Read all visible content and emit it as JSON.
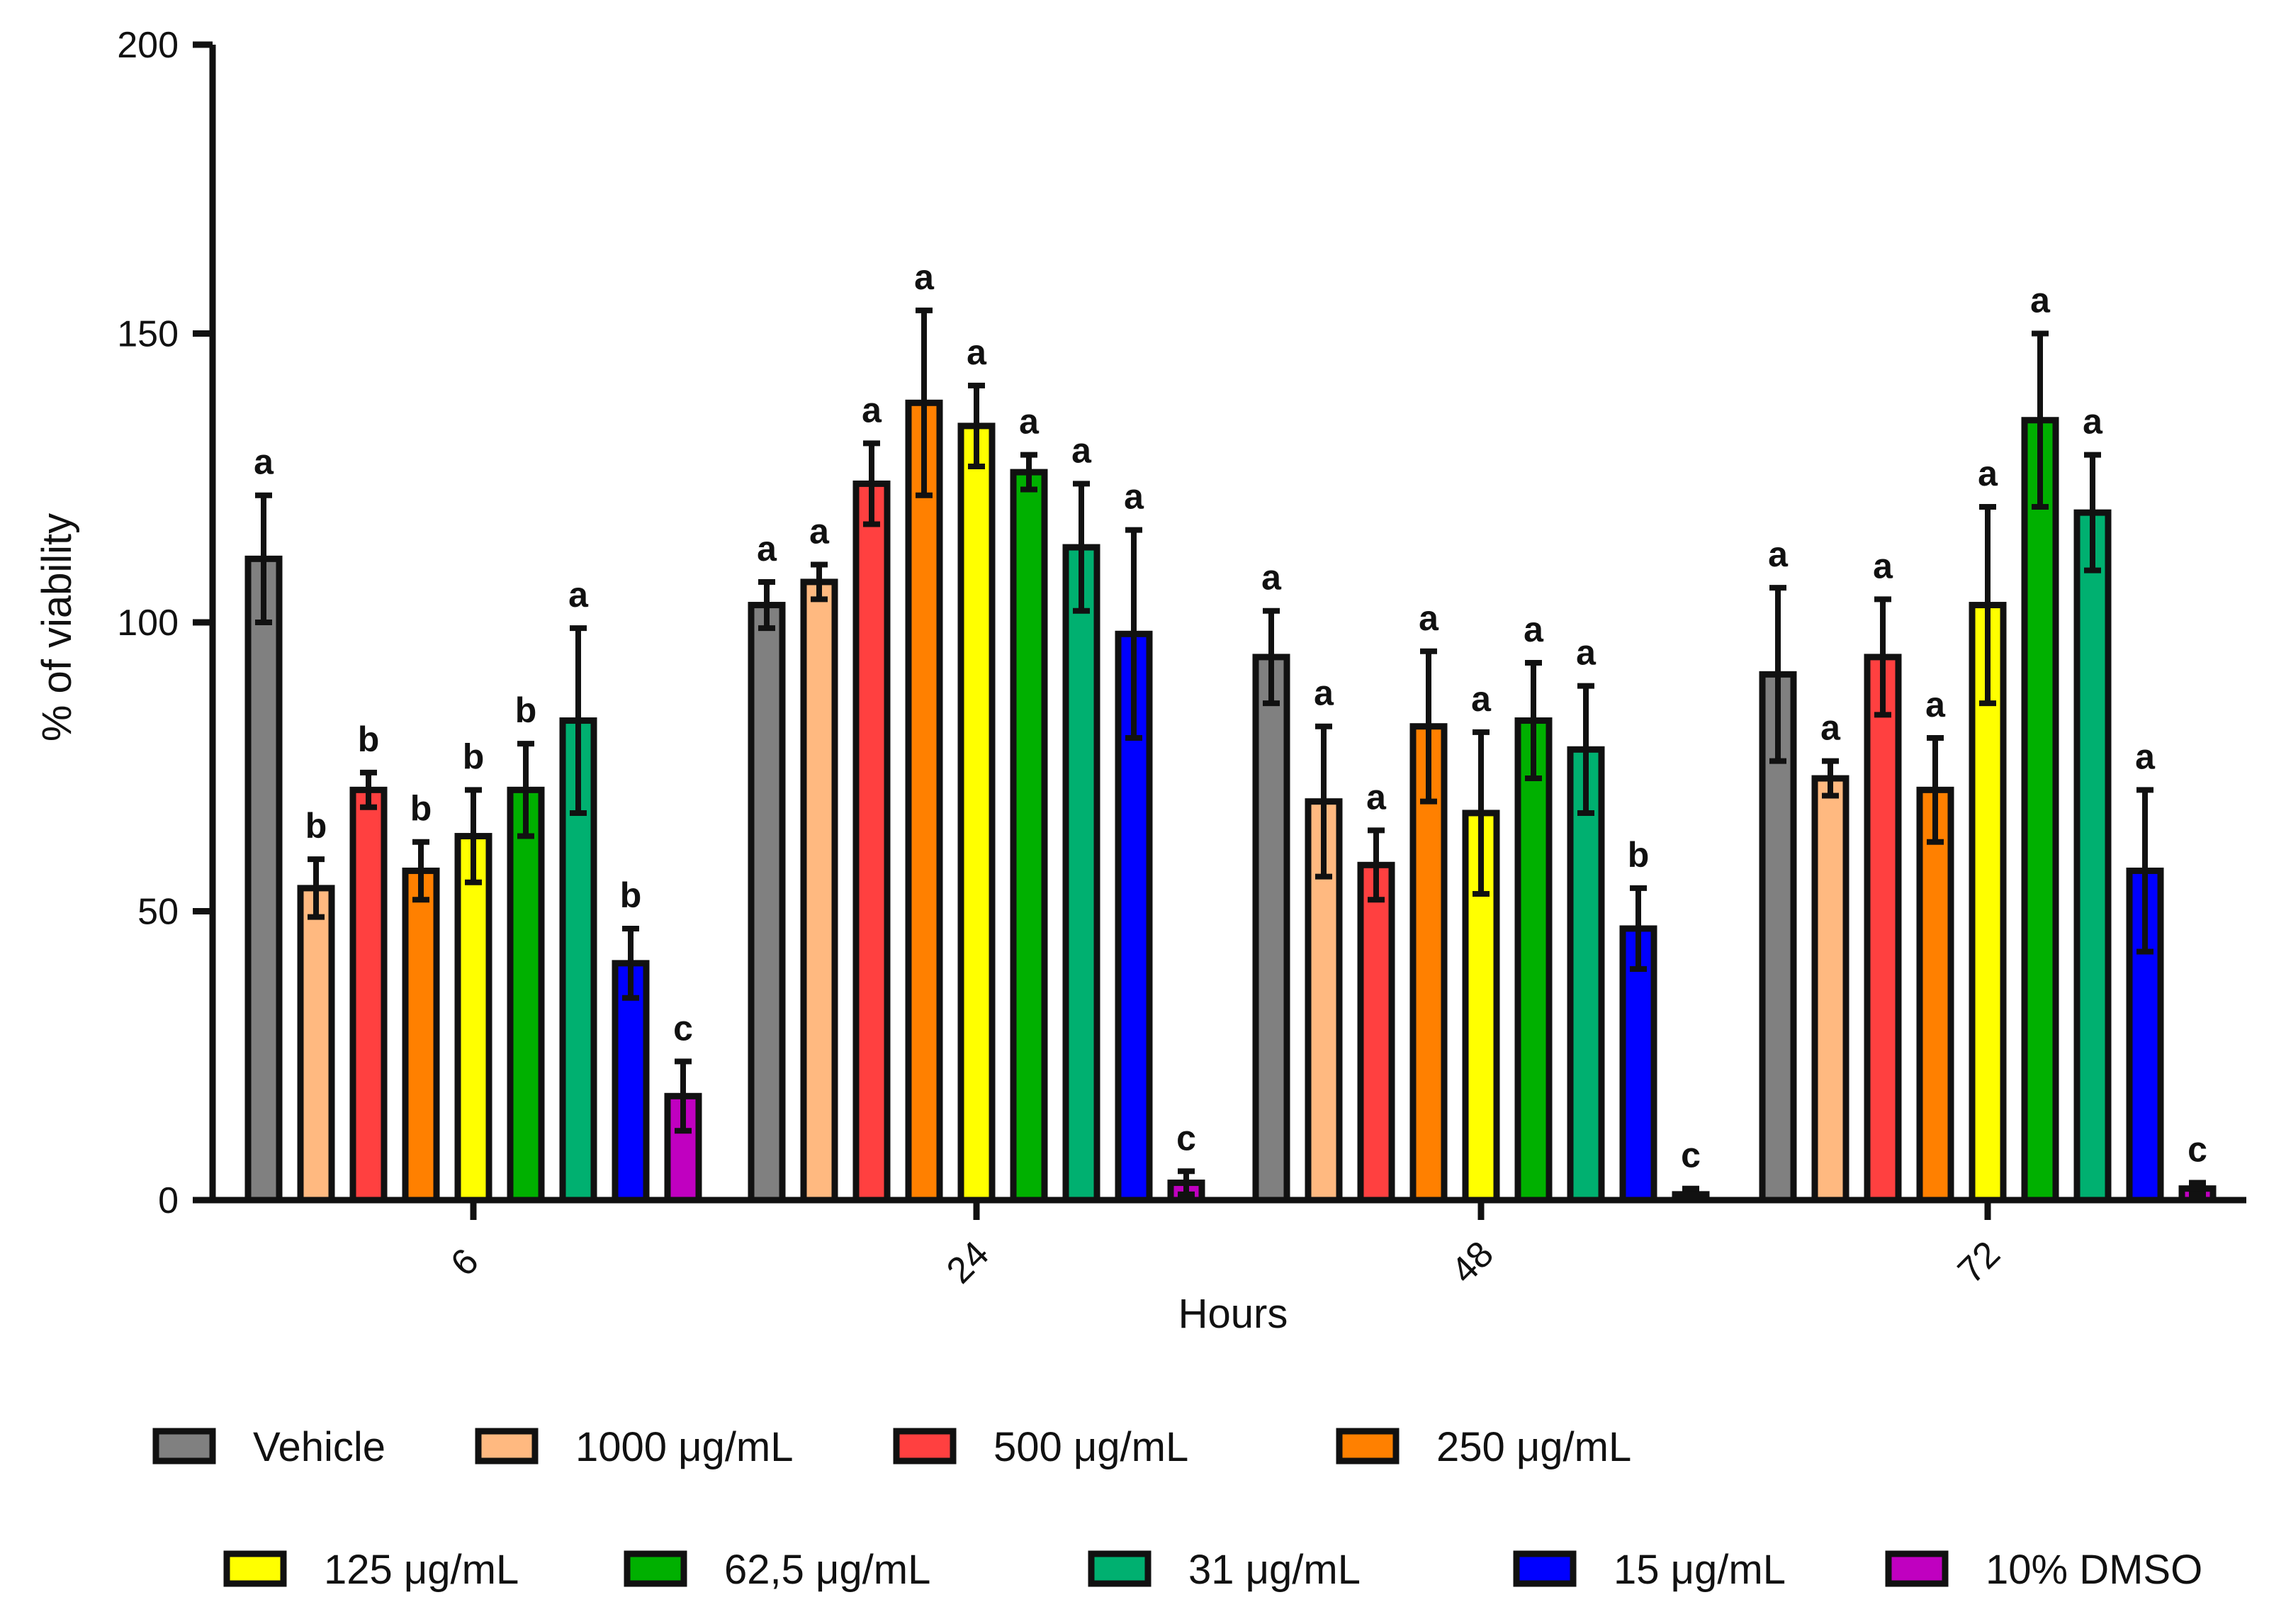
{
  "chart_data": {
    "type": "bar",
    "title": "",
    "xlabel": "Hours",
    "ylabel": "% of viability",
    "ylim": [
      0,
      200
    ],
    "yticks": [
      0,
      50,
      100,
      150,
      200
    ],
    "categories": [
      "6",
      "24",
      "48",
      "72"
    ],
    "series": [
      {
        "name": "Vehicle",
        "color": "#808080",
        "values": [
          111,
          103,
          94,
          91
        ],
        "errors": [
          11,
          4,
          8,
          15
        ],
        "letters": [
          "a",
          "a",
          "a",
          "a"
        ]
      },
      {
        "name": "1000 μg/mL",
        "color": "#FFB980",
        "values": [
          54,
          107,
          69,
          73
        ],
        "errors": [
          5,
          3,
          13,
          3
        ],
        "letters": [
          "b",
          "a",
          "a",
          "a"
        ]
      },
      {
        "name": "500 μg/mL",
        "color": "#FF4040",
        "values": [
          71,
          124,
          58,
          94
        ],
        "errors": [
          3,
          7,
          6,
          10
        ],
        "letters": [
          "b",
          "a",
          "a",
          "a"
        ]
      },
      {
        "name": "250 μg/mL",
        "color": "#FF8000",
        "values": [
          57,
          138,
          82,
          71
        ],
        "errors": [
          5,
          16,
          13,
          9
        ],
        "letters": [
          "b",
          "a",
          "a",
          "a"
        ]
      },
      {
        "name": "125 μg/mL",
        "color": "#FFFF00",
        "values": [
          63,
          134,
          67,
          103
        ],
        "errors": [
          8,
          7,
          14,
          17
        ],
        "letters": [
          "b",
          "a",
          "a",
          "a"
        ]
      },
      {
        "name": "62,5 μg/mL",
        "color": "#00B000",
        "values": [
          71,
          126,
          83,
          135
        ],
        "errors": [
          8,
          3,
          10,
          15
        ],
        "letters": [
          "b",
          "a",
          "a",
          "a"
        ]
      },
      {
        "name": "31 μg/mL",
        "color": "#00B070",
        "values": [
          83,
          113,
          78,
          119
        ],
        "errors": [
          16,
          11,
          11,
          10
        ],
        "letters": [
          "a",
          "a",
          "a",
          "a"
        ]
      },
      {
        "name": "15 μg/mL",
        "color": "#0000FF",
        "values": [
          41,
          98,
          47,
          57
        ],
        "errors": [
          6,
          18,
          7,
          14
        ],
        "letters": [
          "b",
          "a",
          "b",
          "a"
        ]
      },
      {
        "name": "10% DMSO",
        "color": "#C000C0",
        "values": [
          18,
          3,
          1,
          2
        ],
        "errors": [
          6,
          2,
          1,
          1
        ],
        "letters": [
          "c",
          "c",
          "c",
          "c"
        ]
      }
    ],
    "legend_position": "bottom",
    "grid": false
  }
}
